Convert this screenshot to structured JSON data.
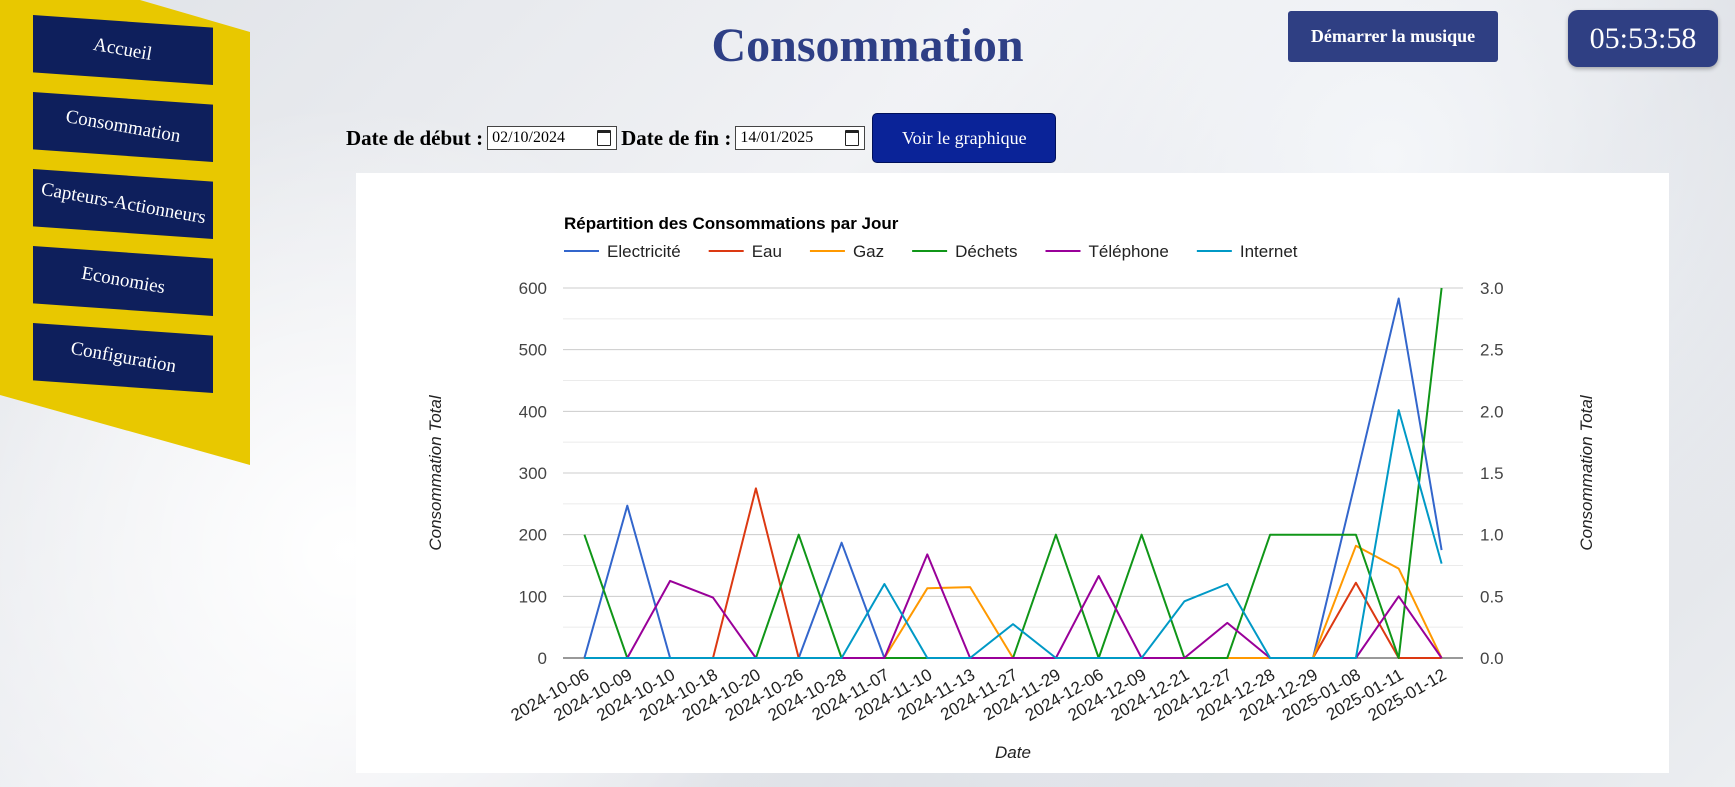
{
  "sidebar": {
    "items": [
      {
        "label": "Accueil"
      },
      {
        "label": "Consommation"
      },
      {
        "label": "Capteurs-Actionneurs"
      },
      {
        "label": "Economies"
      },
      {
        "label": "Configuration"
      }
    ]
  },
  "header": {
    "title": "Consommation",
    "music_button": "Démarrer la musique",
    "clock": "05:53:58"
  },
  "form": {
    "start_label": "Date de début :",
    "start_value": "02/10/2024",
    "end_label": "Date de fin :",
    "end_value": "14/01/2025",
    "submit_label": "Voir le graphique"
  },
  "colors": {
    "sidebar_bg": "#e8c800",
    "nav_bg": "#0e1f5c",
    "accent": "#2f3f83",
    "submit": "#0a2398"
  },
  "chart_data": {
    "type": "line",
    "title": "Répartition des Consommations par Jour",
    "xlabel": "Date",
    "ylabel": "Consommation Total",
    "ylabel_right": "Consommation Total",
    "ylim": [
      0,
      600
    ],
    "ylim_right": [
      0,
      3
    ],
    "yticks": [
      "0",
      "100",
      "200",
      "300",
      "400",
      "500",
      "600"
    ],
    "yticks_right": [
      "0.0",
      "0.5",
      "1.0",
      "1.5",
      "2.0",
      "2.5",
      "3.0"
    ],
    "grid": true,
    "legend": "top-left",
    "x": [
      "2024-10-06",
      "2024-10-09",
      "2024-10-10",
      "2024-10-18",
      "2024-10-20",
      "2024-10-26",
      "2024-10-28",
      "2024-11-07",
      "2024-11-10",
      "2024-11-13",
      "2024-11-27",
      "2024-11-29",
      "2024-12-06",
      "2024-12-09",
      "2024-12-21",
      "2024-12-27",
      "2024-12-28",
      "2024-12-29",
      "2025-01-08",
      "2025-01-11",
      "2025-01-12"
    ],
    "series": [
      {
        "name": "Electricité",
        "color": "#3366cc",
        "axis": "left",
        "values": [
          0,
          247,
          0,
          0,
          0,
          0,
          187,
          0,
          0,
          0,
          0,
          0,
          0,
          0,
          0,
          0,
          0,
          0,
          290,
          583,
          175
        ]
      },
      {
        "name": "Eau",
        "color": "#dc3912",
        "axis": "left",
        "values": [
          0,
          0,
          0,
          0,
          275,
          0,
          0,
          0,
          0,
          0,
          0,
          0,
          0,
          0,
          0,
          0,
          0,
          0,
          122,
          0,
          0
        ]
      },
      {
        "name": "Gaz",
        "color": "#ff9900",
        "axis": "left",
        "values": [
          0,
          0,
          0,
          0,
          0,
          0,
          0,
          0,
          113,
          115,
          0,
          0,
          0,
          0,
          0,
          0,
          0,
          0,
          182,
          145,
          0
        ]
      },
      {
        "name": "Déchets",
        "color": "#109618",
        "axis": "right",
        "values": [
          1,
          0,
          0,
          0,
          0,
          1,
          0,
          0,
          0,
          0,
          0,
          1,
          0,
          1,
          0,
          0,
          1,
          1,
          1,
          0,
          3
        ]
      },
      {
        "name": "Téléphone",
        "color": "#990099",
        "axis": "left",
        "values": [
          0,
          0,
          125,
          98,
          0,
          0,
          0,
          0,
          168,
          0,
          0,
          0,
          133,
          0,
          0,
          57,
          0,
          0,
          0,
          100,
          0
        ]
      },
      {
        "name": "Internet",
        "color": "#0099c6",
        "axis": "left",
        "values": [
          0,
          0,
          0,
          0,
          0,
          0,
          0,
          120,
          0,
          0,
          55,
          0,
          0,
          0,
          92,
          120,
          0,
          0,
          0,
          402,
          153
        ]
      }
    ]
  }
}
